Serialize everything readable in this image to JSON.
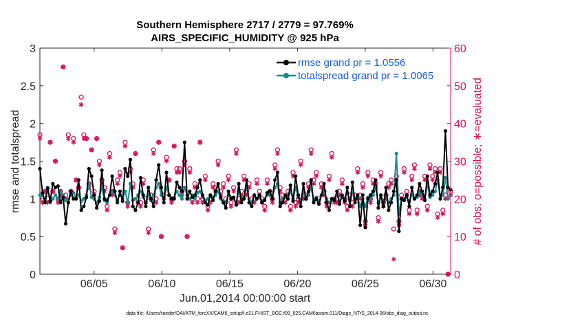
{
  "chart_data": {
    "type": "line",
    "title_line1": "Southern Hemisphere 2717 / 2779 = 97.769%",
    "title_line2": "AIRS_SPECIFIC_HUMIDITY @ 925 hPa",
    "ylabel_left": "rmse and totalspread",
    "ylabel_right": "# of obs: o=possible; ∗=evaluated",
    "xlabel": "Jun.01,2014 00:00:00 start",
    "xlim": [
      1,
      31.3
    ],
    "ylim_left": [
      0,
      3
    ],
    "ylim_right": [
      0,
      60
    ],
    "x_ticks": [
      5,
      10,
      15,
      20,
      25,
      30
    ],
    "x_tick_labels": [
      "06/05",
      "06/10",
      "06/15",
      "06/20",
      "06/25",
      "06/30"
    ],
    "y_ticks_left": [
      "0",
      "0.5",
      "1",
      "1.5",
      "2",
      "2.5",
      "3"
    ],
    "y_ticks_right": [
      "0",
      "10",
      "20",
      "30",
      "40",
      "50",
      "60"
    ],
    "legend": [
      "rmse grand pr = 1.0556",
      "totalspread grand pr = 1.0065"
    ],
    "footnote": "data file: /Users/raeder/DAI/ATM_forcXX/CAM6_setup/f.e21.FHIST_BGC.f09_025.CAM6assim.011/Diags_NTrS_2014-06/obs_diag_output.nc",
    "colors": {
      "rmse": "#000000",
      "spread": "#1a8a8a",
      "obs": "#d8105a",
      "legend_text": "#1a5fd6"
    },
    "series": [
      {
        "name": "rmse",
        "axis": "left",
        "values": [
          1.4,
          1.08,
          0.95,
          1.14,
          0.97,
          1.2,
          1.15,
          1.17,
          0.95,
          1.02,
          0.67,
          0.95,
          1.1,
          1.0,
          1.0,
          1.25,
          0.85,
          0.9,
          1.02,
          1.4,
          1.3,
          1.05,
          0.88,
          0.97,
          1.38,
          1.0,
          0.98,
          1.05,
          1.3,
          1.1,
          0.95,
          1.1,
          0.97,
          1.4,
          1.3,
          1.52,
          0.9,
          0.85,
          0.95,
          1.28,
          1.05,
          0.9,
          1.15,
          1.0,
          0.9,
          1.25,
          1.45,
          1.15,
          0.95,
          1.35,
          1.05,
          1.0,
          1.0,
          1.22,
          1.15,
          1.1,
          1.75,
          1.0,
          1.1,
          1.02,
          1.05,
          1.15,
          1.25,
          1.05,
          0.95,
          0.92,
          1.05,
          0.98,
          1.1,
          1.2,
          1.02,
          0.95,
          0.88,
          1.1,
          1.0,
          1.02,
          0.92,
          1.2,
          0.95,
          1.0,
          1.25,
          0.95,
          0.9,
          1.05,
          1.0,
          1.05,
          0.95,
          0.98,
          1.08,
          1.1,
          1.0,
          1.25,
          1.35,
          0.9,
          0.95,
          1.05,
          1.0,
          1.18,
          0.97,
          1.3,
          1.05,
          0.9,
          1.2,
          1.0,
          1.1,
          1.25,
          0.95,
          1.0,
          0.93,
          1.05,
          1.2,
          0.95,
          0.85,
          1.0,
          0.98,
          1.1,
          0.93,
          1.05,
          0.97,
          1.15,
          0.9,
          1.22,
          0.95,
          1.05,
          0.65,
          1.05,
          0.62,
          1.0,
          1.05,
          1.1,
          1.25,
          0.88,
          1.05,
          0.9,
          1.15,
          0.85,
          0.95,
          1.1,
          1.25,
          0.57,
          1.0,
          0.98,
          1.05,
          0.9,
          1.15,
          1.0,
          1.05,
          1.2,
          1.1,
          0.98,
          1.3,
          1.05,
          1.1,
          1.2,
          1.35,
          1.0,
          1.15,
          1.9,
          1.15,
          1.12
        ]
      },
      {
        "name": "totalspread",
        "axis": "left",
        "values": [
          1.05,
          1.05,
          1.0,
          1.15,
          0.95,
          1.0,
          1.05,
          1.0,
          1.1,
          1.05,
          0.98,
          1.0,
          1.05,
          1.08,
          1.02,
          1.05,
          0.97,
          1.0,
          1.05,
          1.2,
          1.02,
          1.0,
          0.95,
          1.02,
          1.15,
          0.98,
          0.95,
          1.05,
          1.1,
          1.05,
          0.98,
          1.05,
          1.0,
          1.1,
          0.95,
          1.2,
          0.98,
          1.0,
          1.05,
          1.1,
          1.02,
          0.95,
          1.05,
          0.98,
          1.05,
          1.15,
          1.2,
          1.05,
          1.0,
          1.15,
          1.05,
          1.0,
          1.02,
          1.1,
          1.05,
          1.0,
          1.15,
          1.05,
          1.0,
          1.05,
          1.0,
          1.08,
          1.1,
          1.02,
          0.98,
          1.0,
          1.05,
          1.02,
          1.05,
          1.1,
          1.0,
          0.97,
          0.95,
          1.05,
          1.02,
          1.0,
          0.95,
          1.1,
          1.0,
          1.02,
          1.15,
          1.0,
          0.95,
          1.05,
          1.0,
          1.02,
          0.97,
          1.0,
          1.05,
          1.08,
          1.02,
          1.15,
          1.2,
          0.95,
          1.0,
          1.02,
          1.0,
          1.1,
          1.0,
          1.15,
          1.02,
          0.98,
          1.1,
          1.0,
          1.05,
          1.15,
          0.98,
          1.02,
          0.97,
          1.05,
          1.1,
          1.0,
          0.95,
          1.0,
          1.0,
          1.05,
          0.97,
          1.02,
          1.0,
          1.08,
          0.98,
          1.1,
          1.0,
          1.02,
          0.9,
          1.0,
          0.9,
          1.02,
          1.0,
          1.05,
          1.15,
          0.95,
          1.02,
          0.98,
          1.05,
          0.95,
          1.0,
          1.05,
          1.6,
          0.8,
          1.0,
          1.0,
          1.02,
          0.97,
          1.05,
          1.0,
          1.02,
          1.1,
          1.05,
          1.0,
          1.2,
          1.02,
          1.05,
          1.1,
          1.25,
          1.0,
          1.05,
          1.28,
          1.0,
          1.05
        ]
      },
      {
        "name": "obs_possible",
        "axis": "right",
        "values": [
          37,
          20,
          22,
          20,
          35,
          22,
          30,
          20,
          22,
          55,
          21,
          37,
          22,
          36,
          25,
          23,
          47,
          37,
          36,
          24,
          33,
          22,
          36,
          30,
          25,
          23,
          18,
          32,
          22,
          12,
          25,
          27,
          7,
          35,
          19,
          28,
          24,
          32,
          20,
          19,
          25,
          20,
          12,
          21,
          33,
          20,
          35,
          10,
          21,
          31,
          25,
          20,
          34,
          28,
          28,
          22,
          30,
          10,
          28,
          20,
          24,
          20,
          35,
          20,
          26,
          18,
          20,
          24,
          23,
          30,
          22,
          24,
          20,
          26,
          19,
          23,
          33,
          20,
          22,
          26,
          22,
          24,
          20,
          20,
          25,
          22,
          20,
          18,
          25,
          22,
          20,
          29,
          33,
          23,
          21,
          20,
          22,
          18,
          27,
          19,
          20,
          30,
          21,
          21,
          24,
          33,
          25,
          27,
          20,
          24,
          22,
          19,
          26,
          32,
          20,
          20,
          22,
          25,
          20,
          18,
          21,
          19,
          21,
          28,
          21,
          24,
          14,
          27,
          20,
          25,
          24,
          15,
          27,
          19,
          21,
          24,
          25,
          12,
          26,
          14,
          21,
          28,
          22,
          17,
          26,
          29,
          17,
          22,
          21,
          26,
          18,
          29,
          26,
          28,
          16,
          28,
          17,
          21,
          0,
          22
        ]
      },
      {
        "name": "obs_evaluated",
        "axis": "right",
        "values": [
          36,
          19,
          22,
          19,
          35,
          22,
          30,
          19,
          21,
          55,
          20,
          36,
          21,
          35,
          25,
          23,
          45,
          36,
          36,
          23,
          33,
          21,
          36,
          29,
          24,
          22,
          17,
          31,
          21,
          11,
          24,
          26,
          7,
          34,
          18,
          27,
          23,
          32,
          19,
          18,
          24,
          19,
          11,
          20,
          32,
          19,
          35,
          10,
          20,
          30,
          25,
          19,
          34,
          27,
          27,
          21,
          29,
          10,
          27,
          19,
          23,
          19,
          35,
          19,
          25,
          17,
          19,
          23,
          22,
          29,
          21,
          23,
          19,
          25,
          18,
          22,
          32,
          19,
          21,
          25,
          21,
          23,
          19,
          19,
          24,
          21,
          19,
          17,
          24,
          21,
          19,
          28,
          32,
          22,
          20,
          19,
          21,
          17,
          26,
          18,
          19,
          29,
          20,
          20,
          23,
          32,
          24,
          26,
          19,
          23,
          21,
          18,
          25,
          31,
          19,
          19,
          21,
          24,
          19,
          17,
          20,
          18,
          20,
          27,
          20,
          23,
          13,
          26,
          19,
          24,
          23,
          14,
          26,
          18,
          20,
          23,
          24,
          4,
          25,
          13,
          20,
          27,
          21,
          16,
          25,
          28,
          16,
          21,
          20,
          25,
          17,
          28,
          25,
          27,
          15,
          27,
          16,
          20,
          0,
          21
        ]
      }
    ]
  }
}
